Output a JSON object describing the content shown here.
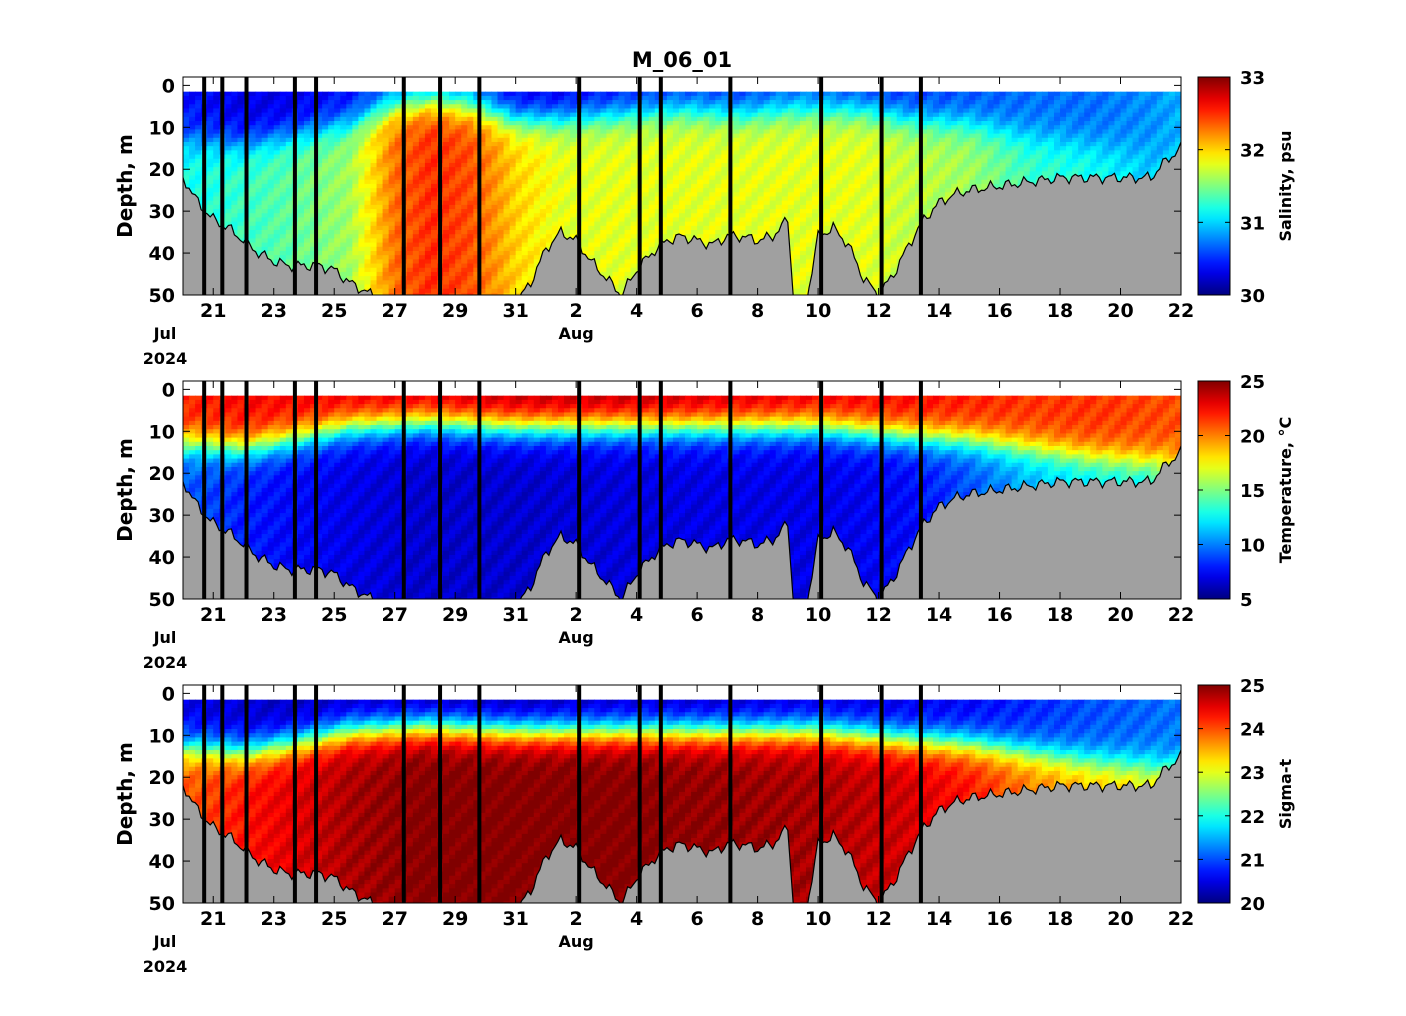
{
  "figure": {
    "title": "M_06_01",
    "background": "#ffffff"
  },
  "chart_data": [
    {
      "type": "heatmap",
      "title": "M_06_01",
      "xlabel": "",
      "ylabel": "Depth, m",
      "x_start": "2024-07-20",
      "x_end": "2024-08-22",
      "ylim": [
        50,
        -2
      ],
      "yticks": [
        "0",
        "10",
        "20",
        "30",
        "40",
        "50"
      ],
      "xtick_labels": [
        "21",
        "23",
        "25",
        "27",
        "29",
        "31",
        "2",
        "4",
        "6",
        "8",
        "10",
        "12",
        "14",
        "16",
        "18",
        "20",
        "22"
      ],
      "month_labels": [
        "Jul",
        "Aug"
      ],
      "year_label": "2024",
      "colorbar": {
        "label": "Salinity, psu",
        "range": [
          30,
          33
        ],
        "ticks": [
          "30",
          "31",
          "32",
          "33"
        ],
        "colormap": "jet"
      },
      "surface_top_depth": 1.5,
      "profiles": [
        {
          "day": 0.5,
          "surface": 30.4,
          "mixed_depth": 13,
          "deep": 31.2,
          "bottom": 28
        },
        {
          "day": 2.0,
          "surface": 30.3,
          "mixed_depth": 14,
          "deep": 31.3,
          "bottom": 37
        },
        {
          "day": 3.5,
          "surface": 30.3,
          "mixed_depth": 12,
          "deep": 31.4,
          "bottom": 42
        },
        {
          "day": 5.5,
          "surface": 30.4,
          "mixed_depth": 9,
          "deep": 31.6,
          "bottom": 47
        },
        {
          "day": 7.0,
          "surface": 30.6,
          "mixed_depth": 5,
          "deep": 32.3,
          "bottom": 50
        },
        {
          "day": 8.2,
          "surface": 30.7,
          "mixed_depth": 4,
          "deep": 32.5,
          "bottom": 50
        },
        {
          "day": 9.5,
          "surface": 30.6,
          "mixed_depth": 5,
          "deep": 32.4,
          "bottom": 50
        },
        {
          "day": 11.0,
          "surface": 30.3,
          "mixed_depth": 8,
          "deep": 32.0,
          "bottom": 50
        },
        {
          "day": 12.5,
          "surface": 30.3,
          "mixed_depth": 8,
          "deep": 31.8,
          "bottom": 35
        },
        {
          "day": 14.5,
          "surface": 30.4,
          "mixed_depth": 7,
          "deep": 31.8,
          "bottom": 50
        },
        {
          "day": 16.5,
          "surface": 30.5,
          "mixed_depth": 6,
          "deep": 31.8,
          "bottom": 37
        },
        {
          "day": 18.5,
          "surface": 30.5,
          "mixed_depth": 7,
          "deep": 31.8,
          "bottom": 36
        },
        {
          "day": 20.0,
          "surface": 30.6,
          "mixed_depth": 6,
          "deep": 31.8,
          "bottom": 50
        },
        {
          "day": 21.0,
          "surface": 30.6,
          "mixed_depth": 6,
          "deep": 31.8,
          "bottom": 38
        },
        {
          "day": 22.5,
          "surface": 30.5,
          "mixed_depth": 6,
          "deep": 31.8,
          "bottom": 50
        },
        {
          "day": 24.0,
          "surface": 30.5,
          "mixed_depth": 8,
          "deep": 31.7,
          "bottom": 35
        },
        {
          "day": 26.0,
          "surface": 30.6,
          "mixed_depth": 9,
          "deep": 31.6,
          "bottom": 28
        },
        {
          "day": 28.0,
          "surface": 30.7,
          "mixed_depth": 12,
          "deep": 31.3,
          "bottom": 23
        },
        {
          "day": 30.0,
          "surface": 30.7,
          "mixed_depth": 14,
          "deep": 31.2,
          "bottom": 22
        },
        {
          "day": 32.0,
          "surface": 30.8,
          "mixed_depth": 16,
          "deep": 31.0,
          "bottom": 22
        },
        {
          "day": 33.0,
          "surface": 30.9,
          "mixed_depth": 16,
          "deep": 31.0,
          "bottom": 15
        }
      ]
    },
    {
      "type": "heatmap",
      "xlabel": "",
      "ylabel": "Depth, m",
      "x_start": "2024-07-20",
      "x_end": "2024-08-22",
      "ylim": [
        50,
        -2
      ],
      "yticks": [
        "0",
        "10",
        "20",
        "30",
        "40",
        "50"
      ],
      "xtick_labels": [
        "21",
        "23",
        "25",
        "27",
        "29",
        "31",
        "2",
        "4",
        "6",
        "8",
        "10",
        "12",
        "14",
        "16",
        "18",
        "20",
        "22"
      ],
      "month_labels": [
        "Jul",
        "Aug"
      ],
      "year_label": "2024",
      "colorbar": {
        "label": "Temperature, °C",
        "range": [
          5,
          25
        ],
        "ticks": [
          "5",
          "10",
          "15",
          "20",
          "25"
        ],
        "colormap": "jet"
      },
      "surface_top_depth": 1.5,
      "profiles": [
        {
          "day": 0.5,
          "surface": 22.0,
          "mixed_depth": 13,
          "deep": 9.0,
          "bottom": 28
        },
        {
          "day": 2.0,
          "surface": 22.5,
          "mixed_depth": 14,
          "deep": 8.0,
          "bottom": 37
        },
        {
          "day": 3.5,
          "surface": 22.5,
          "mixed_depth": 12,
          "deep": 7.5,
          "bottom": 42
        },
        {
          "day": 5.5,
          "surface": 23.0,
          "mixed_depth": 9,
          "deep": 7.0,
          "bottom": 47
        },
        {
          "day": 8.0,
          "surface": 23.5,
          "mixed_depth": 8,
          "deep": 6.5,
          "bottom": 50
        },
        {
          "day": 11.0,
          "surface": 24.0,
          "mixed_depth": 9,
          "deep": 6.5,
          "bottom": 50
        },
        {
          "day": 14.5,
          "surface": 24.0,
          "mixed_depth": 9,
          "deep": 6.8,
          "bottom": 50
        },
        {
          "day": 18.0,
          "surface": 23.5,
          "mixed_depth": 9,
          "deep": 7.0,
          "bottom": 36
        },
        {
          "day": 21.0,
          "surface": 23.0,
          "mixed_depth": 9,
          "deep": 7.0,
          "bottom": 38
        },
        {
          "day": 24.0,
          "surface": 22.5,
          "mixed_depth": 11,
          "deep": 7.5,
          "bottom": 35
        },
        {
          "day": 26.0,
          "surface": 22.0,
          "mixed_depth": 12,
          "deep": 9.0,
          "bottom": 28
        },
        {
          "day": 28.0,
          "surface": 21.5,
          "mixed_depth": 14,
          "deep": 11.0,
          "bottom": 23
        },
        {
          "day": 30.0,
          "surface": 21.5,
          "mixed_depth": 16,
          "deep": 12.0,
          "bottom": 22
        },
        {
          "day": 33.0,
          "surface": 21.0,
          "mixed_depth": 18,
          "deep": 12.5,
          "bottom": 15
        }
      ]
    },
    {
      "type": "heatmap",
      "xlabel": "",
      "ylabel": "Depth, m",
      "x_start": "2024-07-20",
      "x_end": "2024-08-22",
      "ylim": [
        50,
        -2
      ],
      "yticks": [
        "0",
        "10",
        "20",
        "30",
        "40",
        "50"
      ],
      "xtick_labels": [
        "21",
        "23",
        "25",
        "27",
        "29",
        "31",
        "2",
        "4",
        "6",
        "8",
        "10",
        "12",
        "14",
        "16",
        "18",
        "20",
        "22"
      ],
      "month_labels": [
        "Jul",
        "Aug"
      ],
      "year_label": "2024",
      "colorbar": {
        "label": "Sigma-t",
        "range": [
          20,
          25
        ],
        "ticks": [
          "20",
          "21",
          "22",
          "23",
          "24",
          "25"
        ],
        "colormap": "jet"
      },
      "surface_top_depth": 1.5,
      "profiles": [
        {
          "day": 0.5,
          "surface": 20.5,
          "mixed_depth": 13,
          "deep": 24.0,
          "bottom": 28
        },
        {
          "day": 2.0,
          "surface": 20.4,
          "mixed_depth": 14,
          "deep": 24.3,
          "bottom": 37
        },
        {
          "day": 3.5,
          "surface": 20.3,
          "mixed_depth": 12,
          "deep": 24.5,
          "bottom": 42
        },
        {
          "day": 5.5,
          "surface": 20.3,
          "mixed_depth": 9,
          "deep": 24.8,
          "bottom": 47
        },
        {
          "day": 8.0,
          "surface": 20.2,
          "mixed_depth": 8,
          "deep": 25.0,
          "bottom": 50
        },
        {
          "day": 11.0,
          "surface": 20.2,
          "mixed_depth": 9,
          "deep": 25.0,
          "bottom": 50
        },
        {
          "day": 14.5,
          "surface": 20.3,
          "mixed_depth": 9,
          "deep": 25.0,
          "bottom": 50
        },
        {
          "day": 18.0,
          "surface": 20.3,
          "mixed_depth": 9,
          "deep": 24.9,
          "bottom": 36
        },
        {
          "day": 21.0,
          "surface": 20.4,
          "mixed_depth": 9,
          "deep": 24.8,
          "bottom": 38
        },
        {
          "day": 24.0,
          "surface": 20.5,
          "mixed_depth": 11,
          "deep": 24.6,
          "bottom": 35
        },
        {
          "day": 26.0,
          "surface": 20.6,
          "mixed_depth": 12,
          "deep": 24.3,
          "bottom": 28
        },
        {
          "day": 28.0,
          "surface": 20.8,
          "mixed_depth": 14,
          "deep": 23.8,
          "bottom": 23
        },
        {
          "day": 30.0,
          "surface": 21.0,
          "mixed_depth": 16,
          "deep": 23.5,
          "bottom": 22
        },
        {
          "day": 33.0,
          "surface": 21.2,
          "mixed_depth": 18,
          "deep": 23.2,
          "bottom": 15
        }
      ]
    }
  ],
  "shared": {
    "cast_days": [
      0.7,
      1.3,
      2.1,
      3.7,
      4.4,
      7.3,
      8.5,
      9.8,
      13.1,
      15.1,
      15.8,
      18.1,
      21.1,
      23.1,
      24.4
    ],
    "bottom_depth_by_day": [
      [
        0,
        22
      ],
      [
        0.5,
        28
      ],
      [
        1,
        32
      ],
      [
        1.5,
        34
      ],
      [
        2,
        37
      ],
      [
        2.5,
        40
      ],
      [
        3,
        42
      ],
      [
        3.5,
        43
      ],
      [
        4,
        43
      ],
      [
        4.5,
        43
      ],
      [
        5,
        44
      ],
      [
        5.5,
        47
      ],
      [
        6,
        49
      ],
      [
        6.5,
        51
      ],
      [
        7,
        52
      ],
      [
        8,
        52
      ],
      [
        9,
        52
      ],
      [
        10,
        52
      ],
      [
        11,
        52
      ],
      [
        11.5,
        47
      ],
      [
        12,
        39
      ],
      [
        12.5,
        35
      ],
      [
        13,
        37
      ],
      [
        13.5,
        42
      ],
      [
        14,
        46
      ],
      [
        14.5,
        50
      ],
      [
        15,
        44
      ],
      [
        15.5,
        40
      ],
      [
        16,
        37
      ],
      [
        16.5,
        36
      ],
      [
        17,
        37
      ],
      [
        17.5,
        38
      ],
      [
        18,
        36
      ],
      [
        18.5,
        36
      ],
      [
        19,
        37
      ],
      [
        19.5,
        36
      ],
      [
        20,
        32
      ],
      [
        20.2,
        52
      ],
      [
        20.6,
        52
      ],
      [
        21,
        36
      ],
      [
        21.5,
        34
      ],
      [
        22,
        38
      ],
      [
        22.5,
        46
      ],
      [
        23,
        50
      ],
      [
        23.5,
        45
      ],
      [
        24,
        38
      ],
      [
        24.5,
        32
      ],
      [
        25,
        28
      ],
      [
        25.5,
        26
      ],
      [
        26,
        25
      ],
      [
        27,
        24
      ],
      [
        28,
        23
      ],
      [
        29,
        22
      ],
      [
        30,
        22
      ],
      [
        31,
        22
      ],
      [
        32,
        22
      ],
      [
        32.5,
        18
      ],
      [
        33,
        15
      ]
    ]
  },
  "colors": {
    "ground": "#a0a0a0",
    "cast_line": "#000000",
    "bottom_line": "#000000",
    "axes": "#000000"
  }
}
